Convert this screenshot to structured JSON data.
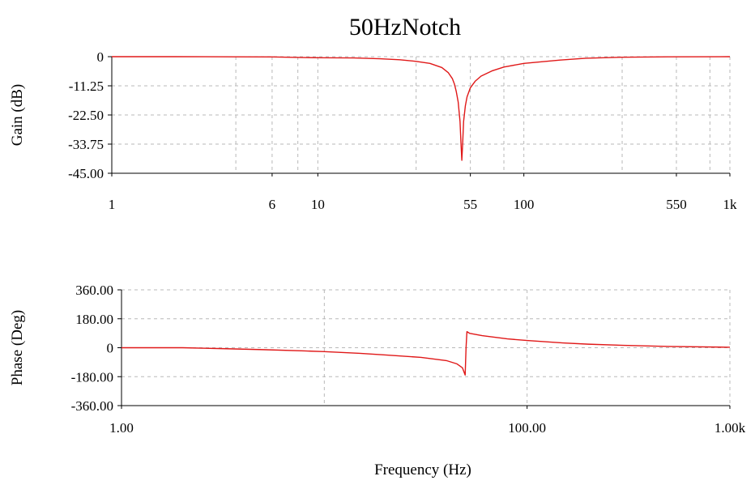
{
  "chart_data": [
    {
      "type": "line",
      "title": "50HzNotch",
      "xlabel": "",
      "ylabel": "Gain (dB)",
      "x_scale": "log",
      "xlim": [
        1,
        1000
      ],
      "ylim": [
        -45,
        0
      ],
      "y_ticks": [
        "0",
        "-11.25",
        "-22.50",
        "-33.75",
        "-45.00"
      ],
      "y_tick_values": [
        0,
        -11.25,
        -22.5,
        -33.75,
        -45
      ],
      "x_ticks": [
        "1",
        "6",
        "10",
        "55",
        "100",
        "550",
        "1k"
      ],
      "x_tick_values": [
        1,
        6,
        10,
        55,
        100,
        550,
        1000
      ],
      "grid": true,
      "series": [
        {
          "color": "#e01818",
          "x": [
            1,
            2,
            4,
            6,
            8,
            10,
            15,
            20,
            25,
            30,
            35,
            40,
            43,
            45,
            46,
            47,
            48,
            49,
            49.5,
            50,
            50.5,
            51,
            52,
            53,
            55,
            58,
            62,
            70,
            80,
            100,
            150,
            200,
            300,
            500,
            1000
          ],
          "y": [
            0,
            0,
            -0.05,
            -0.1,
            -0.3,
            -0.4,
            -0.5,
            -0.8,
            -1.2,
            -1.8,
            -2.6,
            -4.2,
            -6.2,
            -8.5,
            -10.5,
            -13.5,
            -17.5,
            -25,
            -33,
            -40,
            -33,
            -25,
            -19,
            -15.5,
            -12,
            -9.5,
            -7.5,
            -5.5,
            -4,
            -2.6,
            -1.3,
            -0.6,
            -0.2,
            -0.05,
            0
          ]
        }
      ]
    },
    {
      "type": "line",
      "title": "",
      "xlabel": "Frequency (Hz)",
      "ylabel": "Phase (Deg)",
      "x_scale": "log",
      "xlim": [
        1,
        1000
      ],
      "ylim": [
        -360,
        360
      ],
      "y_ticks": [
        "360.00",
        "180.00",
        "0",
        "-180.00",
        "-360.00"
      ],
      "y_tick_values": [
        360,
        180,
        0,
        -180,
        -360
      ],
      "x_ticks": [
        "1.00",
        "100.00",
        "1.00k"
      ],
      "x_tick_values": [
        1,
        100,
        1000
      ],
      "grid": true,
      "series": [
        {
          "color": "#e01818",
          "x": [
            1,
            2,
            3,
            5,
            8,
            10,
            15,
            20,
            30,
            40,
            45,
            48,
            49.5,
            50,
            50.5,
            52,
            60,
            80,
            100,
            150,
            200,
            300,
            500,
            1000
          ],
          "y": [
            0,
            0,
            -5,
            -12,
            -20,
            -24,
            -35,
            -45,
            -60,
            -80,
            -100,
            -125,
            -170,
            0,
            100,
            90,
            75,
            55,
            45,
            30,
            22,
            15,
            8,
            3
          ]
        }
      ]
    }
  ]
}
